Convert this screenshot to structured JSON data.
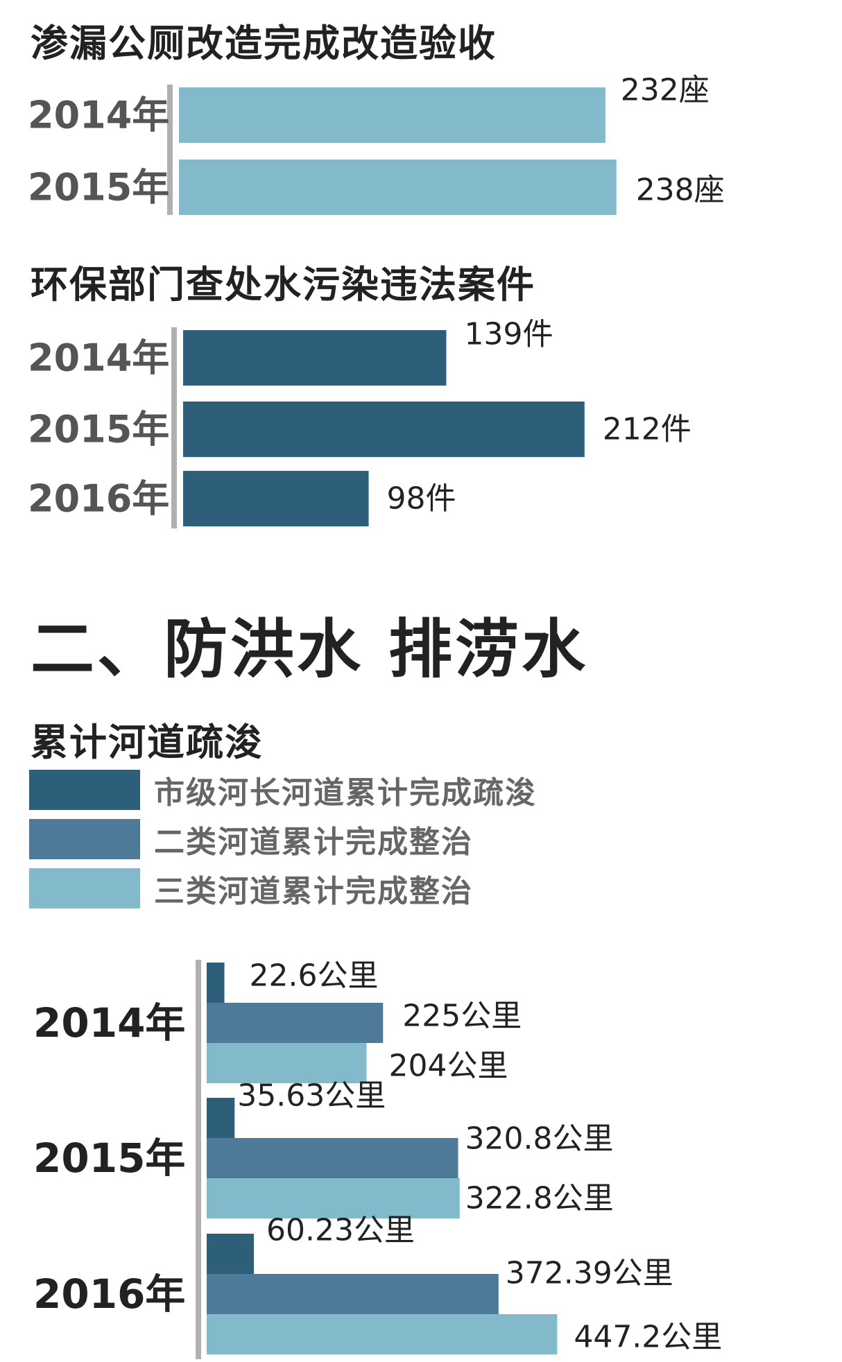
{
  "colors": {
    "light": "#82b9cb",
    "mid": "#4d7a98",
    "dark": "#2d5f7b",
    "axis": "#b0b0b0",
    "title": "#222222",
    "year_label": "#555555",
    "value_label": "#222222"
  },
  "headings": {
    "section_title": "二、防洪水 排涝水"
  },
  "chart_data": [
    {
      "type": "bar",
      "orientation": "horizontal",
      "title": "渗漏公厕改造完成改造验收",
      "categories": [
        "2014年",
        "2015年"
      ],
      "series": [
        {
          "values": [
            232,
            238
          ],
          "labels": [
            "232座",
            "238座"
          ],
          "color": "#82b9cb"
        }
      ]
    },
    {
      "type": "bar",
      "orientation": "horizontal",
      "title": "环保部门查处水污染违法案件",
      "categories": [
        "2014年",
        "2015年",
        "2016年"
      ],
      "series": [
        {
          "values": [
            139,
            212,
            98
          ],
          "labels": [
            "139件",
            "212件",
            "98件"
          ],
          "color": "#2d5f7b"
        }
      ]
    },
    {
      "type": "bar",
      "orientation": "horizontal",
      "title": "累计河道疏浚",
      "categories": [
        "2014年",
        "2015年",
        "2016年"
      ],
      "legend": [
        "市级河长河道累计完成疏浚",
        "二类河道累计完成整治",
        "三类河道累计完成整治"
      ],
      "series": [
        {
          "name": "市级河长河道累计完成疏浚",
          "values": [
            22.6,
            35.63,
            60.23
          ],
          "labels": [
            "22.6公里",
            "35.63公里",
            "60.23公里"
          ],
          "color": "#2d5f7b"
        },
        {
          "name": "二类河道累计完成整治",
          "values": [
            225,
            320.8,
            372.39
          ],
          "labels": [
            "225公里",
            "320.8公里",
            "372.39公里"
          ],
          "color": "#4d7a98"
        },
        {
          "name": "三类河道累计完成整治",
          "values": [
            204,
            322.8,
            447.2
          ],
          "labels": [
            "204公里",
            "322.8公里",
            "447.2公里"
          ],
          "color": "#82b9cb"
        }
      ]
    }
  ]
}
